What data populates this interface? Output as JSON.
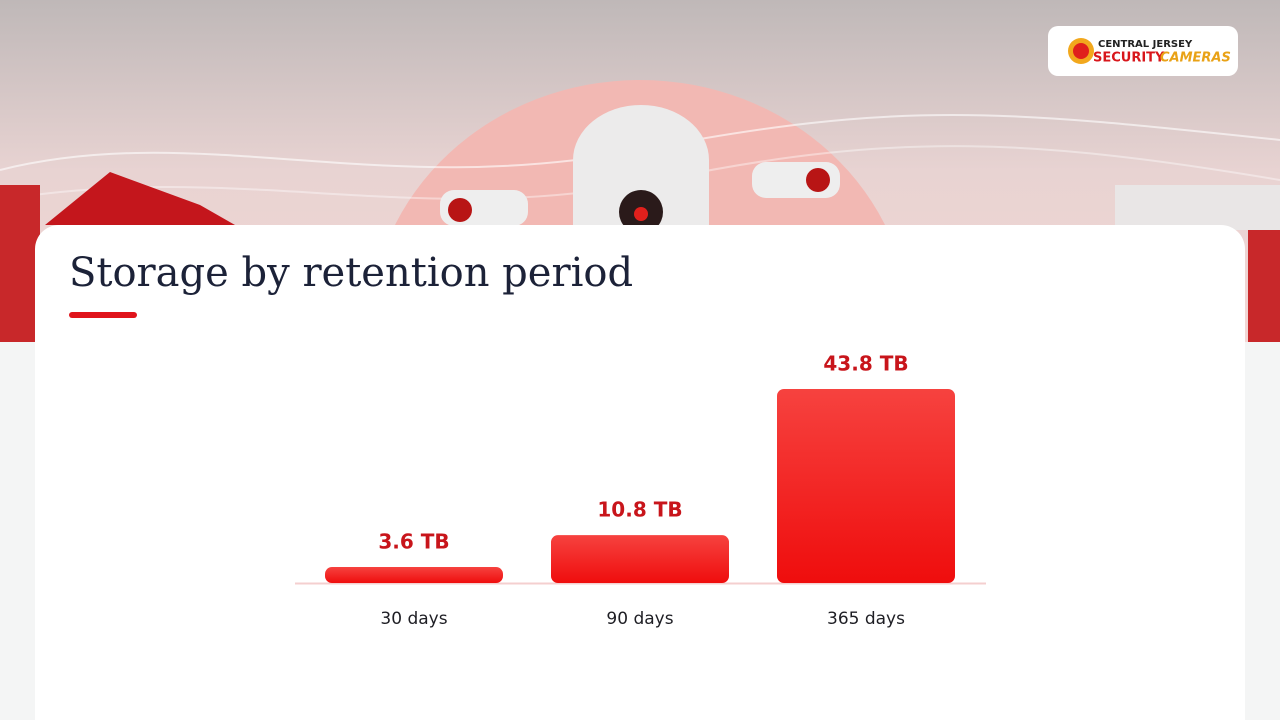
{
  "logo": {
    "top": "CENTRAL JERSEY",
    "left": "SECURITY",
    "right": "CAMERAS"
  },
  "chart_data": {
    "type": "bar",
    "title": "Storage by retention period",
    "categories": [
      "30 days",
      "90 days",
      "365 days"
    ],
    "values": [
      3.6,
      10.8,
      43.8
    ],
    "value_labels": [
      "3.6 TB",
      "10.8 TB",
      "43.8 TB"
    ],
    "color": "#f2201e"
  }
}
